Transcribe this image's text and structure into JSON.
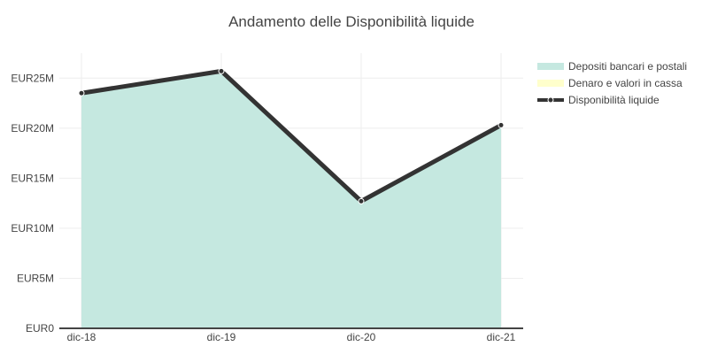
{
  "chart_data": {
    "type": "area",
    "title": "Andamento delle Disponibilità liquide",
    "xlabel": "",
    "ylabel": "",
    "categories": [
      "dic-18",
      "dic-19",
      "dic-20",
      "dic-21"
    ],
    "y_ticks": [
      0,
      5,
      10,
      15,
      20,
      25
    ],
    "y_tick_labels": [
      "EUR0",
      "EUR5M",
      "EUR10M",
      "EUR15M",
      "EUR20M",
      "EUR25M"
    ],
    "ylim": [
      0,
      27.5
    ],
    "unit": "EUR M",
    "grid": true,
    "legend_position": "top-right",
    "series": [
      {
        "name": "Depositi bancari e postali",
        "kind": "area",
        "color": "#c5e8e0",
        "values": [
          23.5,
          25.7,
          12.7,
          20.3
        ]
      },
      {
        "name": "Denaro e valori in cassa",
        "kind": "area",
        "color": "#ffffcc",
        "values": [
          0.0,
          0.0,
          0.0,
          0.0
        ]
      },
      {
        "name": "Disponibilità liquide",
        "kind": "line",
        "color": "#333333",
        "values": [
          23.5,
          25.7,
          12.7,
          20.3
        ]
      }
    ]
  }
}
